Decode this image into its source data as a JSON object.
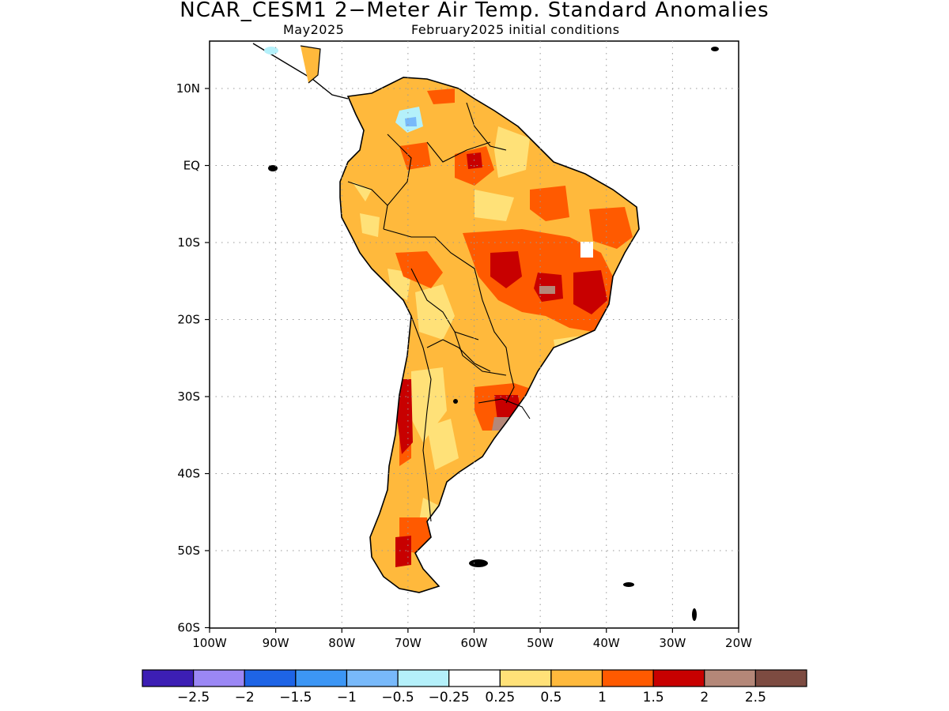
{
  "title": "NCAR_CESM1 2−Meter Air Temp. Standard Anomalies",
  "subtitle_left": "May2025",
  "subtitle_right": "February2025 initial conditions",
  "axes": {
    "lon_labels": [
      "100W",
      "90W",
      "80W",
      "70W",
      "60W",
      "50W",
      "40W",
      "30W",
      "20W"
    ],
    "lat_labels": [
      "10N",
      "EQ",
      "10S",
      "20S",
      "30S",
      "40S",
      "50S",
      "60S"
    ]
  },
  "colorbar": {
    "colors": [
      "#3c1eb4",
      "#9b87f5",
      "#1e64e6",
      "#3c96f5",
      "#78b9fa",
      "#b4f0fa",
      "#ffffff",
      "#ffe178",
      "#ffb93c",
      "#ff5a00",
      "#c80000",
      "#b48778",
      "#7d4b41"
    ],
    "labels": [
      "−2.5",
      "−2",
      "−1.5",
      "−1",
      "−0.5",
      "−0.25",
      "0.25",
      "0.5",
      "1",
      "1.5",
      "2",
      "2.5"
    ]
  },
  "map_colors": {
    "light_orange": "#ffb93c",
    "yellow": "#ffe178",
    "orange": "#ff5a00",
    "red": "#c80000",
    "brown": "#b48778",
    "light_blue": "#b4f0fa",
    "blue": "#78b9fa"
  }
}
